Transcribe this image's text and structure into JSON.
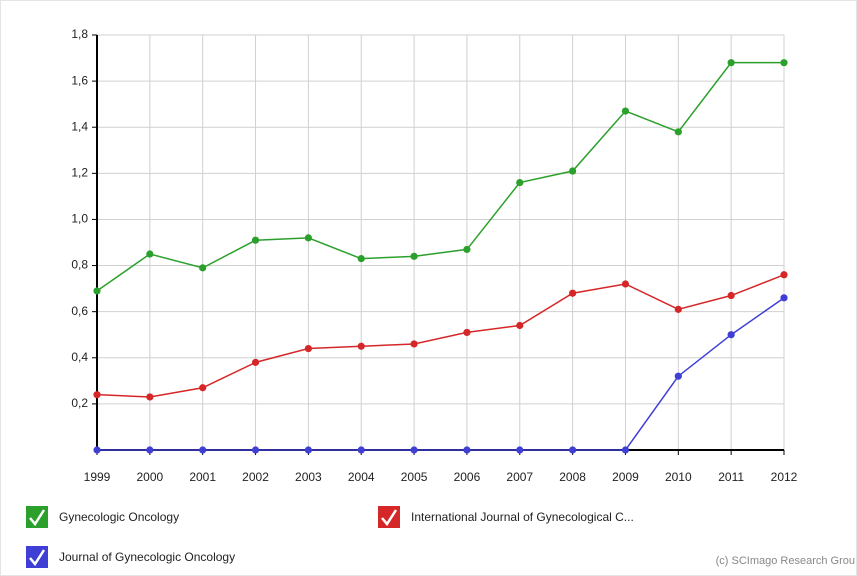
{
  "chart_data": {
    "type": "line",
    "categories": [
      "1999",
      "2000",
      "2001",
      "2002",
      "2003",
      "2004",
      "2005",
      "2006",
      "2007",
      "2008",
      "2009",
      "2010",
      "2011",
      "2012"
    ],
    "series": [
      {
        "name": "Gynecologic Oncology",
        "color": "#2ca02c",
        "values": [
          0.69,
          0.85,
          0.79,
          0.91,
          0.92,
          0.83,
          0.84,
          0.87,
          1.16,
          1.21,
          1.47,
          1.38,
          1.68,
          1.68
        ]
      },
      {
        "name": "International Journal of Gynecological C...",
        "color": "#d62728",
        "values": [
          0.24,
          0.23,
          0.27,
          0.38,
          0.44,
          0.45,
          0.46,
          0.51,
          0.54,
          0.68,
          0.72,
          0.61,
          0.67,
          0.76
        ]
      },
      {
        "name": "Journal of Gynecologic Oncology",
        "color": "#3f3fd6",
        "values": [
          0,
          0,
          0,
          0,
          0,
          0,
          0,
          0,
          0,
          0,
          0,
          0.32,
          0.5,
          0.66
        ]
      }
    ],
    "ylim": [
      0,
      1.8
    ],
    "yticks": [
      {
        "value": 0.2,
        "label": "0,2"
      },
      {
        "value": 0.4,
        "label": "0,4"
      },
      {
        "value": 0.6,
        "label": "0,6"
      },
      {
        "value": 0.8,
        "label": "0,8"
      },
      {
        "value": 1.0,
        "label": "1,0"
      },
      {
        "value": 1.2,
        "label": "1,2"
      },
      {
        "value": 1.4,
        "label": "1,4"
      },
      {
        "value": 1.6,
        "label": "1,6"
      },
      {
        "value": 1.8,
        "label": "1,8"
      }
    ],
    "grid": true,
    "credit": "(c) SCImago Research Grou"
  }
}
